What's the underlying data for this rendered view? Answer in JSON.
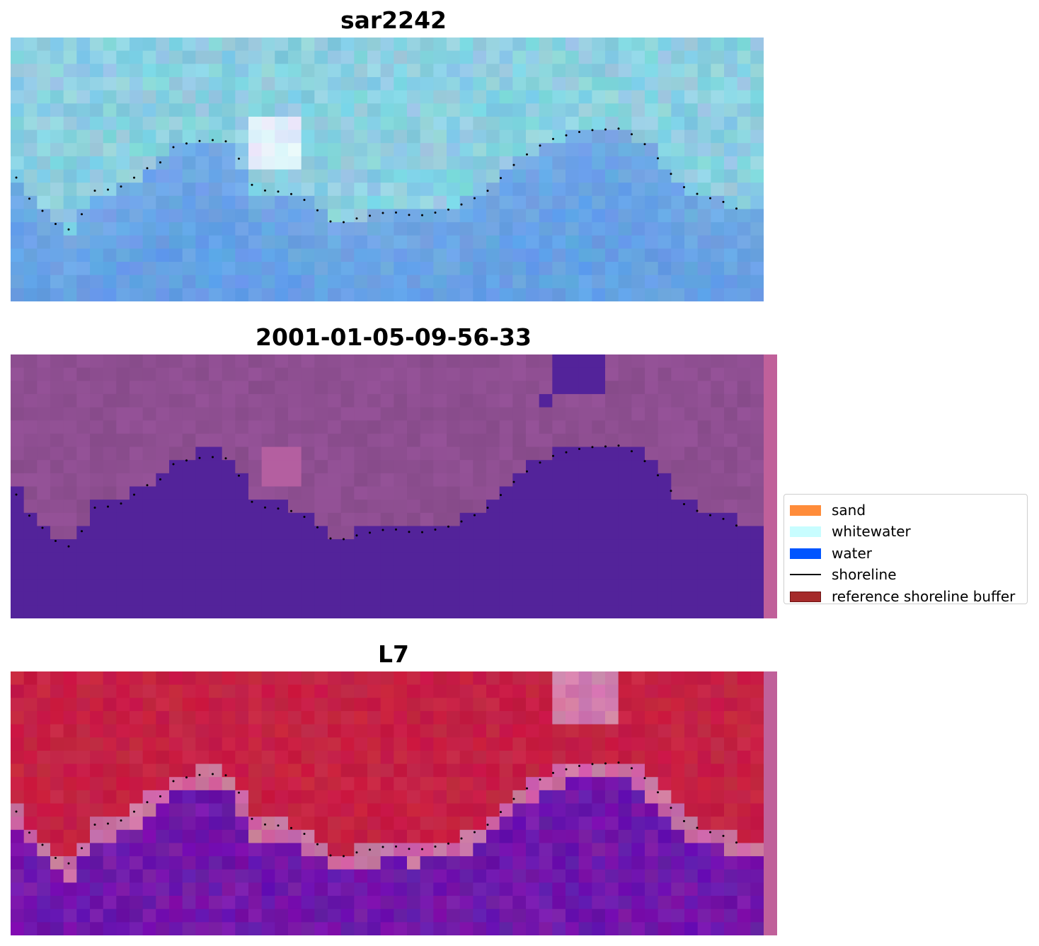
{
  "panels": [
    {
      "title": "sar2242",
      "kind": "rgb",
      "has_edge_band": false
    },
    {
      "title": "2001-01-05-09-56-33",
      "kind": "classified",
      "has_edge_band": true
    },
    {
      "title": "L7",
      "kind": "index",
      "has_edge_band": true
    }
  ],
  "legend": {
    "items": [
      {
        "label": "sand",
        "color": "#ff8c3a",
        "kind": "patch"
      },
      {
        "label": "whitewater",
        "color": "#c8fdff",
        "kind": "patch"
      },
      {
        "label": "water",
        "color": "#0055ff",
        "kind": "patch"
      },
      {
        "label": "shoreline",
        "color": "#000000",
        "kind": "line"
      },
      {
        "label": "reference shoreline buffer",
        "color": "#a52a2a",
        "kind": "patch"
      }
    ]
  },
  "colors": {
    "water_class": "#53239a",
    "land_class": "#8c4f8e",
    "edge_band": "#c0609a",
    "index_high": "#c11a44",
    "index_low": "#6a1aa0",
    "shoreline_points": "#000000"
  }
}
